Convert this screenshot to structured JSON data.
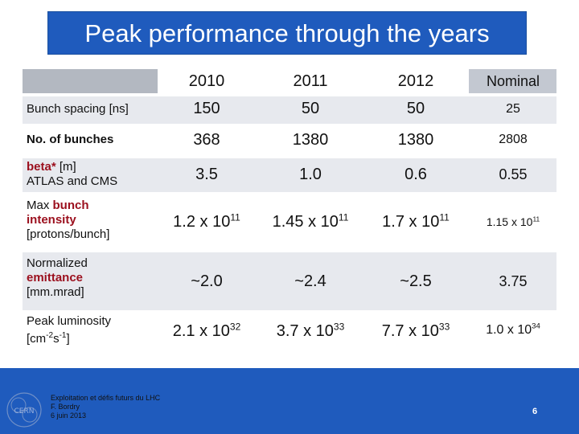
{
  "title": "Peak performance through the years",
  "columns": [
    "2010",
    "2011",
    "2012",
    "Nominal"
  ],
  "rows": [
    {
      "label_parts": [
        "Bunch spacing [ns]"
      ],
      "values": [
        "150",
        "50",
        "50",
        "25"
      ]
    },
    {
      "label_parts": [
        "No. of bunches"
      ],
      "values": [
        "368",
        "1380",
        "1380",
        "2808"
      ]
    },
    {
      "label_parts": [
        "beta*",
        " [m]",
        "ATLAS and CMS"
      ],
      "values": [
        "3.5",
        "1.0",
        "0.6",
        "0.55"
      ]
    },
    {
      "label_parts": [
        "Max ",
        "bunch",
        "intensity",
        "[protons/bunch]"
      ],
      "values": [
        {
          "mantissa": "1.2 x 10",
          "exp": "11"
        },
        {
          "mantissa": "1.45 x 10",
          "exp": "11"
        },
        {
          "mantissa": "1.7 x 10",
          "exp": "11"
        },
        {
          "mantissa": "1.15 x 10",
          "exp": "11"
        }
      ]
    },
    {
      "label_parts": [
        "Normalized",
        "emittance",
        "[mm.mrad]"
      ],
      "values": [
        "~2.0",
        "~2.4",
        "~2.5",
        "3.75"
      ]
    },
    {
      "label_parts": [
        "Peak luminosity",
        "[cm",
        "-2",
        "s",
        "-1",
        "]"
      ],
      "values": [
        {
          "mantissa": "2.1 x 10",
          "exp": "32"
        },
        {
          "mantissa": "3.7 x 10",
          "exp": "33"
        },
        {
          "mantissa": "7.7 x 10",
          "exp": "33"
        },
        {
          "mantissa": "1.0 x 10",
          "exp": "34"
        }
      ]
    }
  ],
  "footer": {
    "line1": "Exploitation et défis futurs du LHC",
    "line2": "F. Bordry",
    "line3": "6 juin 2013",
    "logo_text": "CERN",
    "page_number": "6"
  },
  "colors": {
    "title_bg": "#1f5bbd",
    "footer_bg": "#1f5bbd",
    "highlight": "#9b0f1d",
    "band": "#e7e9ee",
    "header_band": "#b3b8c1"
  }
}
